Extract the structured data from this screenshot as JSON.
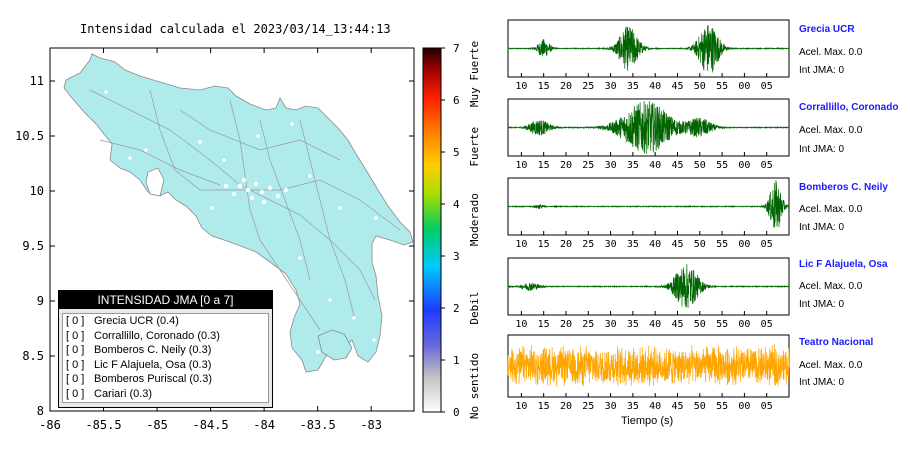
{
  "map": {
    "title": "Intensidad calculada el 2023/03/14_13:44:13",
    "x_ticks": [
      "-86",
      "-85.5",
      "-85",
      "-84.5",
      "-84",
      "-83.5",
      "-83"
    ],
    "y_ticks": [
      "11",
      "10.5",
      "10",
      "9.5",
      "9",
      "8.5",
      "8"
    ]
  },
  "colorbar": {
    "ticks": [
      "7",
      "6",
      "5",
      "4",
      "3",
      "2",
      "1",
      "0"
    ],
    "categories": [
      "Muy Fuerte",
      "Fuerte",
      "Moderado",
      "Debil",
      "No sentido"
    ]
  },
  "legend": {
    "header": "INTENSIDAD JMA [0 a 7]",
    "rows": [
      {
        "code": "[ 0 ]",
        "label": "Grecia UCR (0.4)"
      },
      {
        "code": "[ 0 ]",
        "label": "Corrallillo, Coronado (0.3)"
      },
      {
        "code": "[ 0 ]",
        "label": "Bomberos C. Neily (0.3)"
      },
      {
        "code": "[ 0 ]",
        "label": "Lic F Alajuela, Osa (0.3)"
      },
      {
        "code": "[ 0 ]",
        "label": "Bomberos Puriscal (0.3)"
      },
      {
        "code": "[ 0 ]",
        "label": "Cariari (0.3)"
      }
    ]
  },
  "stations": [
    {
      "name": "Grecia UCR",
      "accel": "Acel. Max. 0.0",
      "jma": "Int JMA: 0"
    },
    {
      "name": "Corrallillo, Coronado",
      "accel": "Acel. Max. 0.0",
      "jma": "Int JMA: 0"
    },
    {
      "name": "Bomberos C. Neily",
      "accel": "Acel. Max. 0.0",
      "jma": "Int JMA: 0"
    },
    {
      "name": "Lic F Alajuela, Osa",
      "accel": "Acel. Max. 0.0",
      "jma": "Int JMA: 0"
    },
    {
      "name": "Teatro Nacional",
      "accel": "Acel. Max. 0.0",
      "jma": "Int JMA: 0"
    }
  ],
  "time_axis": {
    "label": "Tiempo (s)",
    "ticks": [
      "10",
      "15",
      "20",
      "25",
      "30",
      "35",
      "40",
      "45",
      "50",
      "55",
      "00",
      "05"
    ]
  },
  "chart_data": [
    {
      "type": "scatter",
      "title": "Intensidad calculada el 2023/03/14_13:44:13",
      "xlim": [
        -86,
        -82.6
      ],
      "ylim": [
        8,
        11.3
      ],
      "colorbar_range": [
        0,
        7
      ],
      "legend_placement": "bottom-left"
    },
    {
      "type": "line",
      "xlabel": "Tiempo (s)",
      "series": [
        {
          "name": "Grecia UCR",
          "color": "#006400",
          "bursts": [
            [
              15,
              1.5,
              0.35
            ],
            [
              34,
              2.5,
              0.85
            ],
            [
              52,
              2.5,
              1.0
            ]
          ]
        },
        {
          "name": "Corrallillo, Coronado",
          "color": "#006400",
          "bursts": [
            [
              14,
              2.5,
              0.3
            ],
            [
              38,
              6.0,
              1.0
            ],
            [
              50,
              3.0,
              0.35
            ]
          ]
        },
        {
          "name": "Bomberos C. Neily",
          "color": "#006400",
          "bursts": [
            [
              14,
              1.0,
              0.08
            ],
            [
              67,
              1.5,
              1.0
            ]
          ]
        },
        {
          "name": "Lic F Alajuela, Osa",
          "color": "#006400",
          "bursts": [
            [
              12,
              2.0,
              0.15
            ],
            [
              47,
              3.0,
              0.85
            ]
          ]
        },
        {
          "name": "Teatro Nacional",
          "color": "#FFA500",
          "bursts": [
            [
              40,
              40.0,
              0.75
            ]
          ]
        }
      ]
    }
  ]
}
